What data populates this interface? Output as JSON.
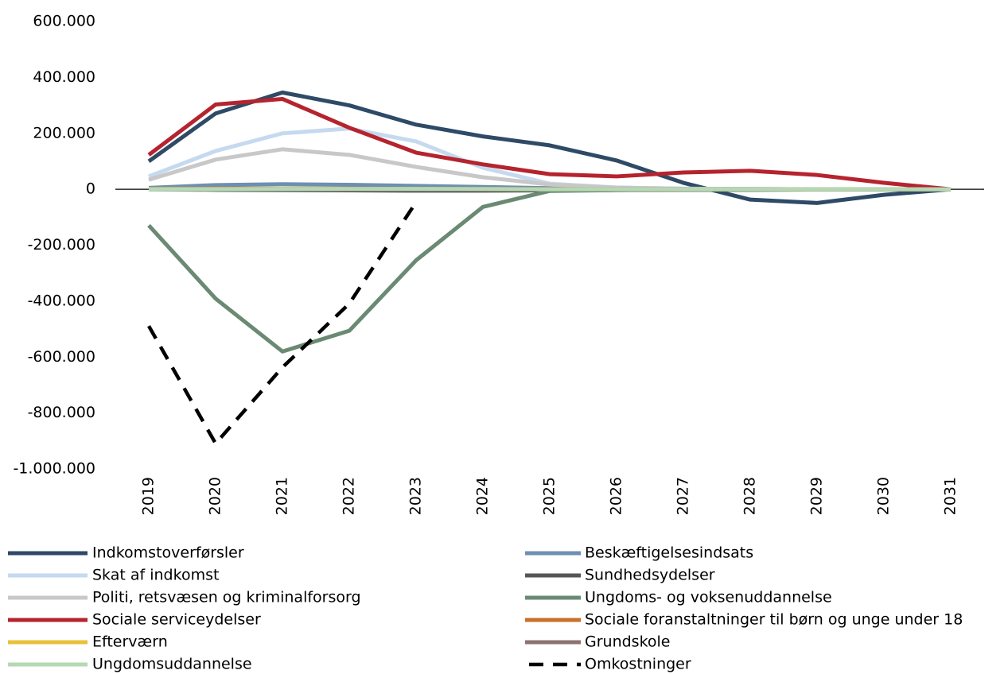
{
  "chart_data": {
    "type": "line",
    "categories": [
      "2019",
      "2020",
      "2021",
      "2022",
      "2023",
      "2024",
      "2025",
      "2026",
      "2027",
      "2028",
      "2029",
      "2030",
      "2031"
    ],
    "ylim": [
      -1000000,
      600000
    ],
    "yticks": [
      {
        "value": -1000000,
        "label": "-1.000.000"
      },
      {
        "value": -800000,
        "label": "-800.000"
      },
      {
        "value": -600000,
        "label": "-600.000"
      },
      {
        "value": -400000,
        "label": "-400.000"
      },
      {
        "value": -200000,
        "label": "-200.000"
      },
      0,
      {
        "value": 200000,
        "label": "200.000"
      },
      {
        "value": 400000,
        "label": "400.000"
      },
      {
        "value": 600000,
        "label": "600.000"
      }
    ],
    "series": [
      {
        "name": "Indkomstoverførsler",
        "color": "#2e4a66",
        "values": [
          100000,
          271000,
          346000,
          300000,
          231000,
          189000,
          157000,
          103000,
          23000,
          -37000,
          -49000,
          -20000,
          0
        ]
      },
      {
        "name": "Beskæftigelsesindsats",
        "color": "#6e8fb0",
        "values": [
          5000,
          15000,
          18000,
          16000,
          12000,
          8000,
          4000,
          2000,
          1000,
          1000,
          0,
          0,
          0
        ]
      },
      {
        "name": "Skat af indkomst",
        "color": "#c5d9ef",
        "values": [
          46000,
          137000,
          200000,
          217000,
          171000,
          77000,
          20000,
          6000,
          2000,
          1000,
          0,
          0,
          0
        ]
      },
      {
        "name": "Sundhedsydelser",
        "color": "#555555",
        "values": [
          0,
          -2000,
          -3000,
          -4000,
          -5000,
          -5000,
          -4000,
          -3000,
          -2000,
          -2000,
          -1000,
          -1000,
          0
        ]
      },
      {
        "name": "Politi, retsvæsen og kriminalforsorg",
        "color": "#c8c8c8",
        "values": [
          34000,
          106000,
          143000,
          123000,
          80000,
          43000,
          17000,
          6000,
          2000,
          1000,
          0,
          0,
          0
        ]
      },
      {
        "name": "Ungdoms- og voksenuddannelse",
        "color": "#6a8a73",
        "values": [
          -129000,
          -391000,
          -580000,
          -506000,
          -254000,
          -63000,
          -6000,
          -3000,
          -1000,
          -1000,
          0,
          0,
          0
        ]
      },
      {
        "name": "Sociale serviceydelser",
        "color": "#b5242e",
        "values": [
          123000,
          303000,
          323000,
          220000,
          131000,
          89000,
          54000,
          46000,
          60000,
          66000,
          51000,
          23000,
          0
        ]
      },
      {
        "name": "Sociale foranstaltninger til børn og unge under 18",
        "color": "#c8702a",
        "values": [
          1000,
          2000,
          2000,
          2000,
          1000,
          1000,
          1000,
          0,
          0,
          0,
          0,
          0,
          0
        ]
      },
      {
        "name": "Efterværn",
        "color": "#e8c13a",
        "values": [
          1000,
          1000,
          1000,
          1000,
          1000,
          0,
          0,
          0,
          0,
          0,
          0,
          0,
          0
        ]
      },
      {
        "name": "Grundskole",
        "color": "#8c7272",
        "values": [
          0,
          0,
          0,
          0,
          0,
          0,
          0,
          0,
          0,
          0,
          0,
          0,
          0
        ]
      },
      {
        "name": "Ungdomsuddannelse",
        "color": "#b5d8b5",
        "values": [
          0,
          0,
          1000,
          1000,
          1000,
          1000,
          0,
          0,
          0,
          0,
          0,
          0,
          0
        ]
      },
      {
        "name": "Omkostninger",
        "color": "#000000",
        "style": "dashed",
        "values": [
          -489000,
          -909000,
          -637000,
          -409000,
          -46000,
          null,
          null,
          null,
          null,
          null,
          null,
          null,
          null
        ]
      }
    ]
  }
}
